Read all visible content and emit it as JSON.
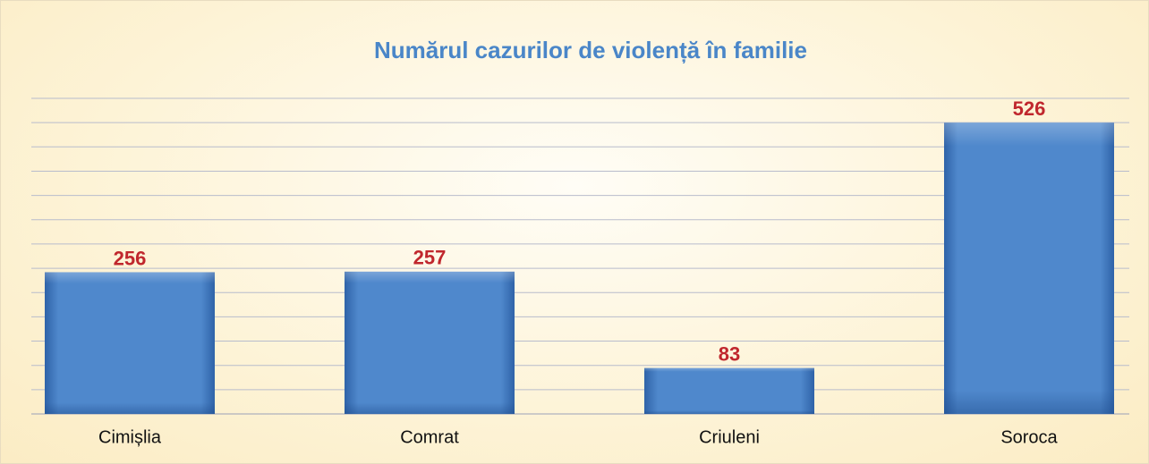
{
  "chart_data": {
    "type": "bar",
    "title": "Numărul cazurilor de violență în familie",
    "categories": [
      "Cimișlia",
      "Comrat",
      "Criuleni",
      "Soroca"
    ],
    "values": [
      256,
      257,
      83,
      526
    ],
    "color": "#4f88cc",
    "label_color": "#c0272d",
    "ylim": [
      0,
      570
    ]
  }
}
